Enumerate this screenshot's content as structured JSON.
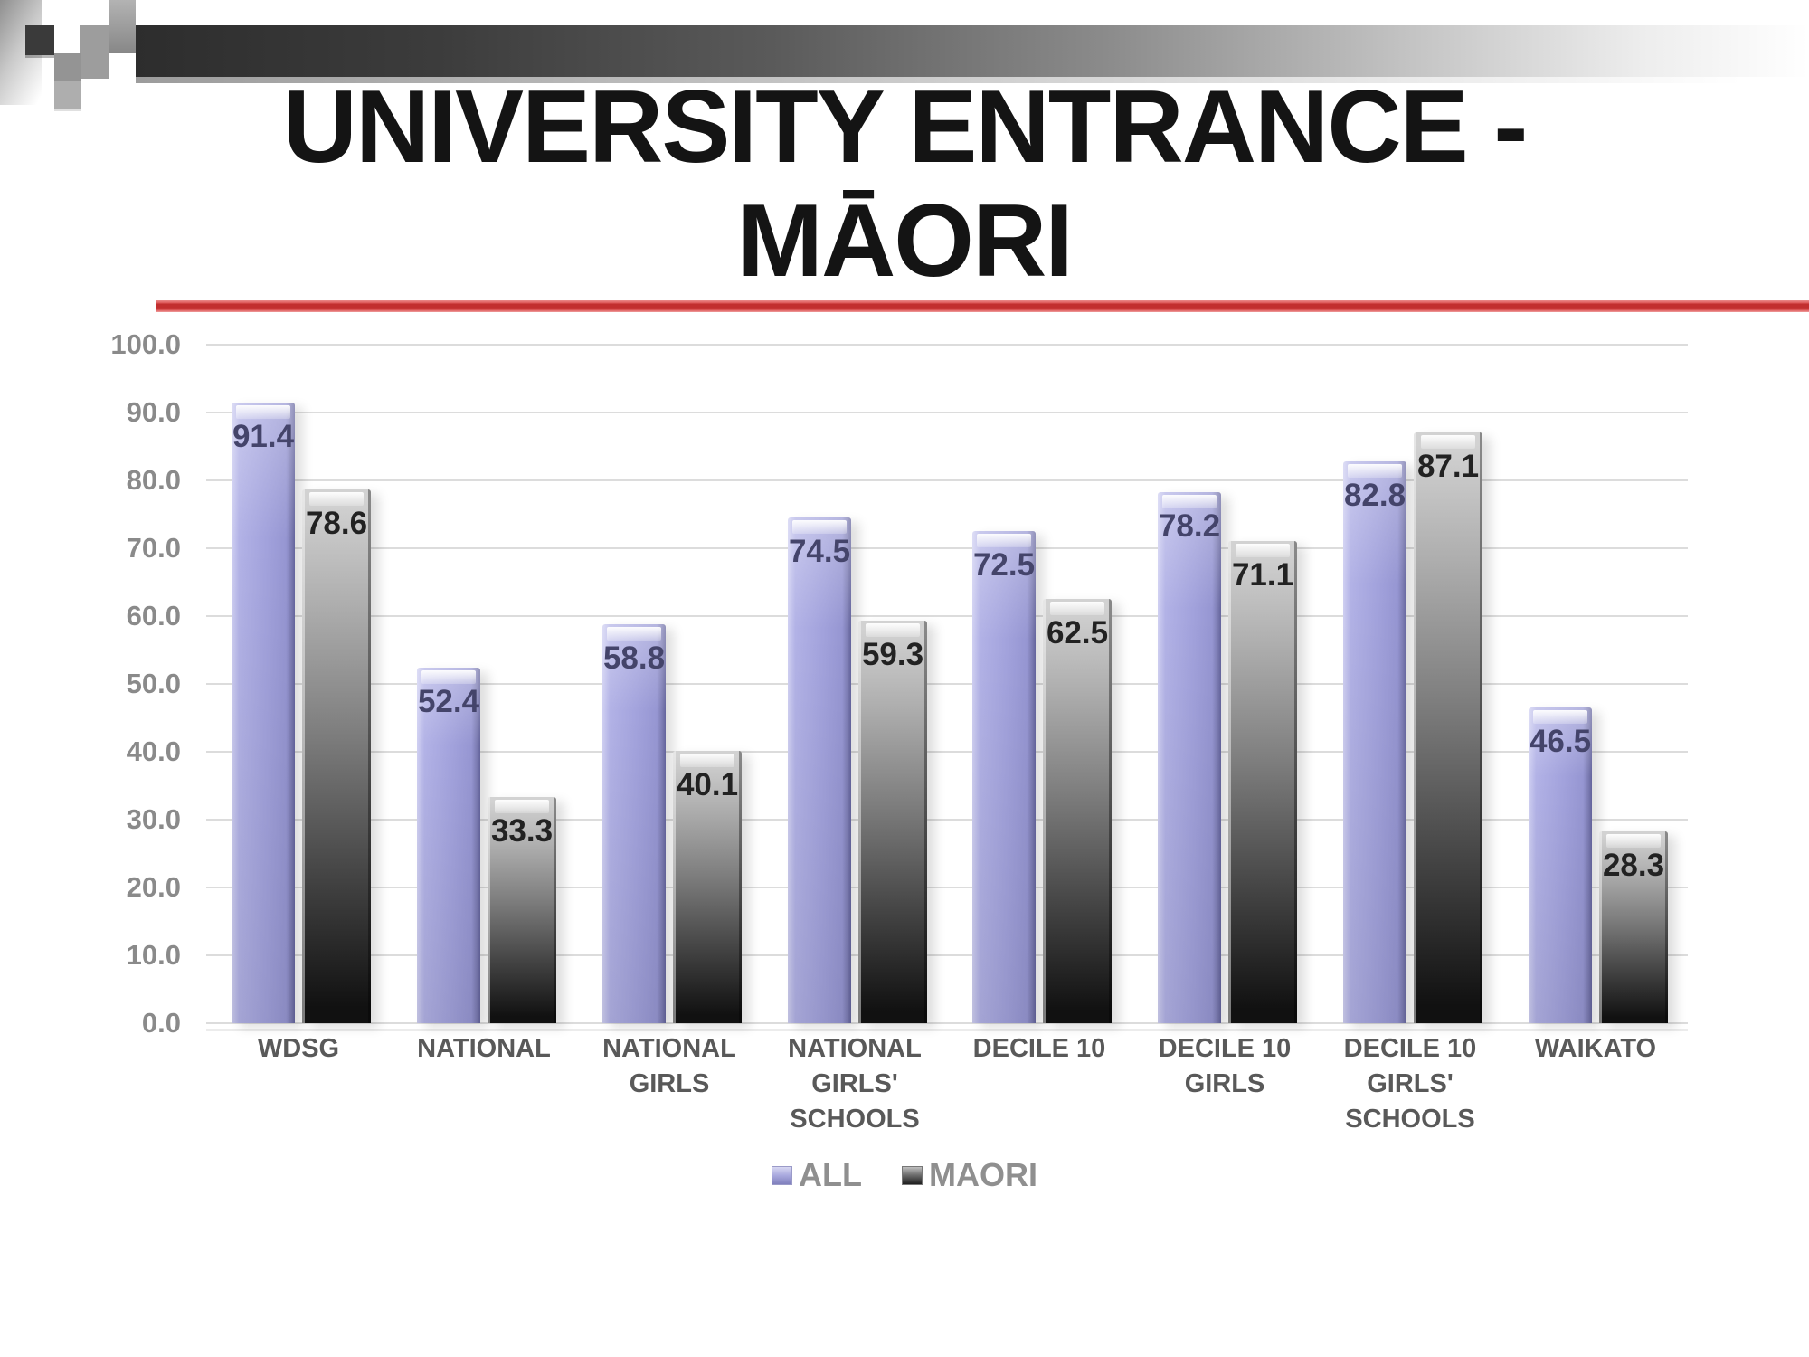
{
  "slide": {
    "title": "UNIVERSITY ENTRANCE -\nMĀORI"
  },
  "chart_data": {
    "type": "bar",
    "title": "UNIVERSITY ENTRANCE - MĀORI",
    "categories": [
      "WDSG",
      "NATIONAL",
      "NATIONAL\nGIRLS",
      "NATIONAL\nGIRLS'\nSCHOOLS",
      "DECILE 10",
      "DECILE 10\nGIRLS",
      "DECILE 10\nGIRLS'\nSCHOOLS",
      "WAIKATO"
    ],
    "series": [
      {
        "name": "ALL",
        "color": "#a2a2dc",
        "values": [
          91.4,
          52.4,
          58.8,
          74.5,
          72.5,
          78.2,
          82.8,
          46.5
        ]
      },
      {
        "name": "MAORI",
        "color": "#6b6b6b",
        "values": [
          78.6,
          33.3,
          40.1,
          59.3,
          62.5,
          71.1,
          87.1,
          28.3
        ]
      }
    ],
    "ylim": [
      0,
      100
    ],
    "ytick_step": 10,
    "yticks": [
      "100.0",
      "90.0",
      "80.0",
      "70.0",
      "60.0",
      "50.0",
      "40.0",
      "30.0",
      "20.0",
      "10.0",
      "0.0"
    ],
    "grid": true,
    "value_labels": true,
    "value_label_format": "one_decimal",
    "legend_position": "bottom-center",
    "legend": [
      "ALL",
      "MAORI"
    ]
  },
  "styles": {
    "accent_red": "#c22f2f",
    "grid_color": "#dcdcdc",
    "axis_text_color": "#8a8a8a",
    "category_text_color": "#595959",
    "value_text_color_all": "#44446a",
    "value_text_color_maori": "#222222",
    "all_bar_color": "#a2a2dc",
    "maori_bar_top": "#d2d2d2",
    "maori_bar_bottom": "#141414",
    "banner_dark": "#2d2d2d",
    "title_color": "#141414"
  }
}
